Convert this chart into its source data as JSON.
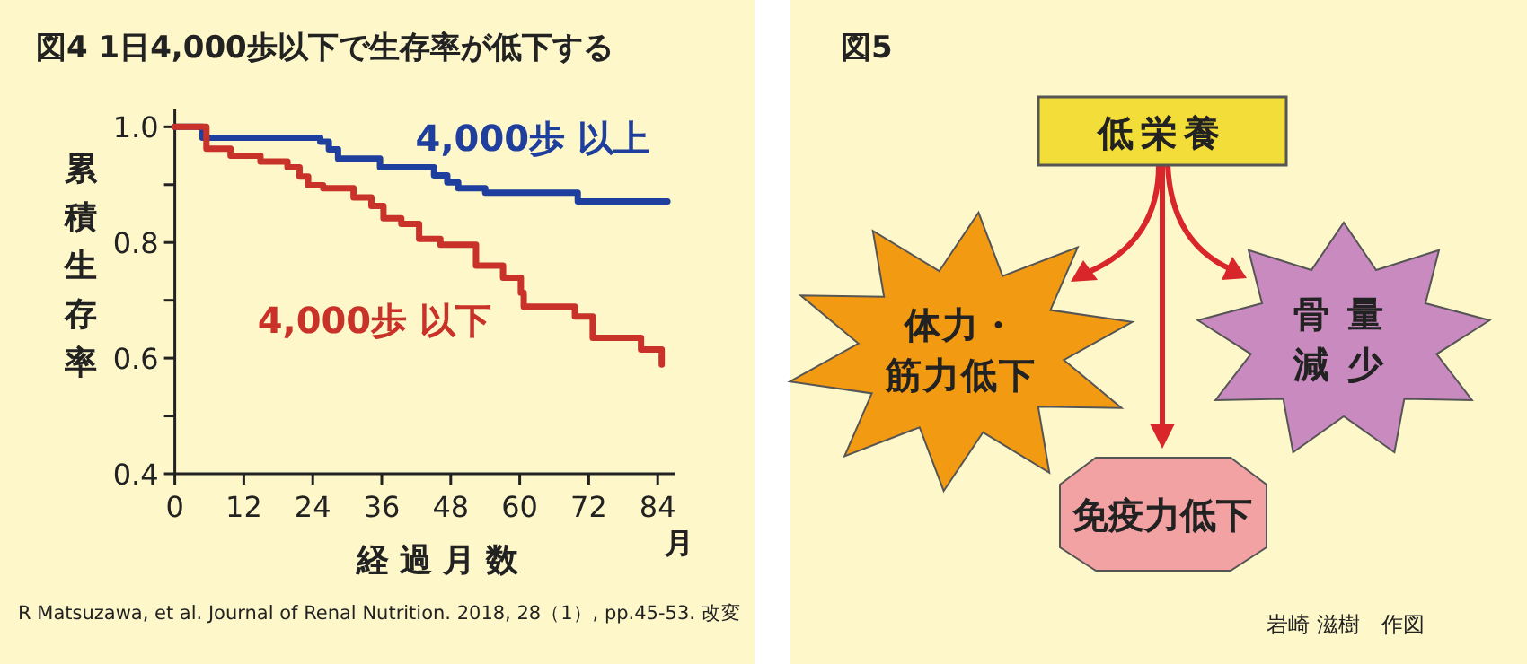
{
  "chart_data": [
    {
      "type": "step",
      "title": "図4 1日4,000歩以下で生存率が低下する",
      "xlabel": "経過月数",
      "ylabel": "累積生存率",
      "xlim": [
        0,
        87
      ],
      "ylim": [
        0.4,
        1.03
      ],
      "xticks": [
        0,
        12,
        24,
        36,
        48,
        60,
        72,
        84
      ],
      "yticks": [
        0.4,
        {
          "value": 0.5,
          "label": null
        },
        0.6,
        {
          "value": 0.7,
          "label": null
        },
        0.8,
        {
          "value": 0.9,
          "label": null
        },
        {
          "value": 1.0,
          "label": "1.0"
        }
      ],
      "series": [
        {
          "name": "4,000歩 以上",
          "color": "#1f3f9f",
          "x": [
            0,
            4.8,
            25.3,
            26.8,
            28.4,
            35.7,
            45.1,
            47.4,
            49.3,
            51.5,
            54,
            70.1,
            85.7
          ],
          "values": [
            1.0,
            0.981,
            0.974,
            0.961,
            0.945,
            0.93,
            0.916,
            0.904,
            0.894,
            0.894,
            0.886,
            0.871,
            0.871
          ]
        },
        {
          "name": "4,000歩 以下",
          "color": "#c83228",
          "x": [
            0,
            5.5,
            9.7,
            14.9,
            19.6,
            21.7,
            23.2,
            25.8,
            31.1,
            34.2,
            36.3,
            39.4,
            42.5,
            46.2,
            52.4,
            57.1,
            60.2,
            60.7,
            69.6,
            72.7,
            81.1,
            84.7
          ],
          "values": [
            1.0,
            0.962,
            0.95,
            0.94,
            0.93,
            0.914,
            0.899,
            0.894,
            0.878,
            0.863,
            0.842,
            0.832,
            0.806,
            0.796,
            0.76,
            0.739,
            0.713,
            0.689,
            0.672,
            0.635,
            0.615,
            0.589
          ]
        }
      ],
      "annotations": [
        "月",
        "R Matsuzawa, et al. Journal of Renal Nutrition. 2018, 28（1）, pp.45-53. 改変"
      ]
    },
    {
      "type": "other",
      "title": "図5",
      "annotations": [
        "低栄養",
        "体力・筋力低下",
        "骨量減少",
        "免疫力低下",
        "岩崎 滋樹　作図"
      ]
    }
  ]
}
